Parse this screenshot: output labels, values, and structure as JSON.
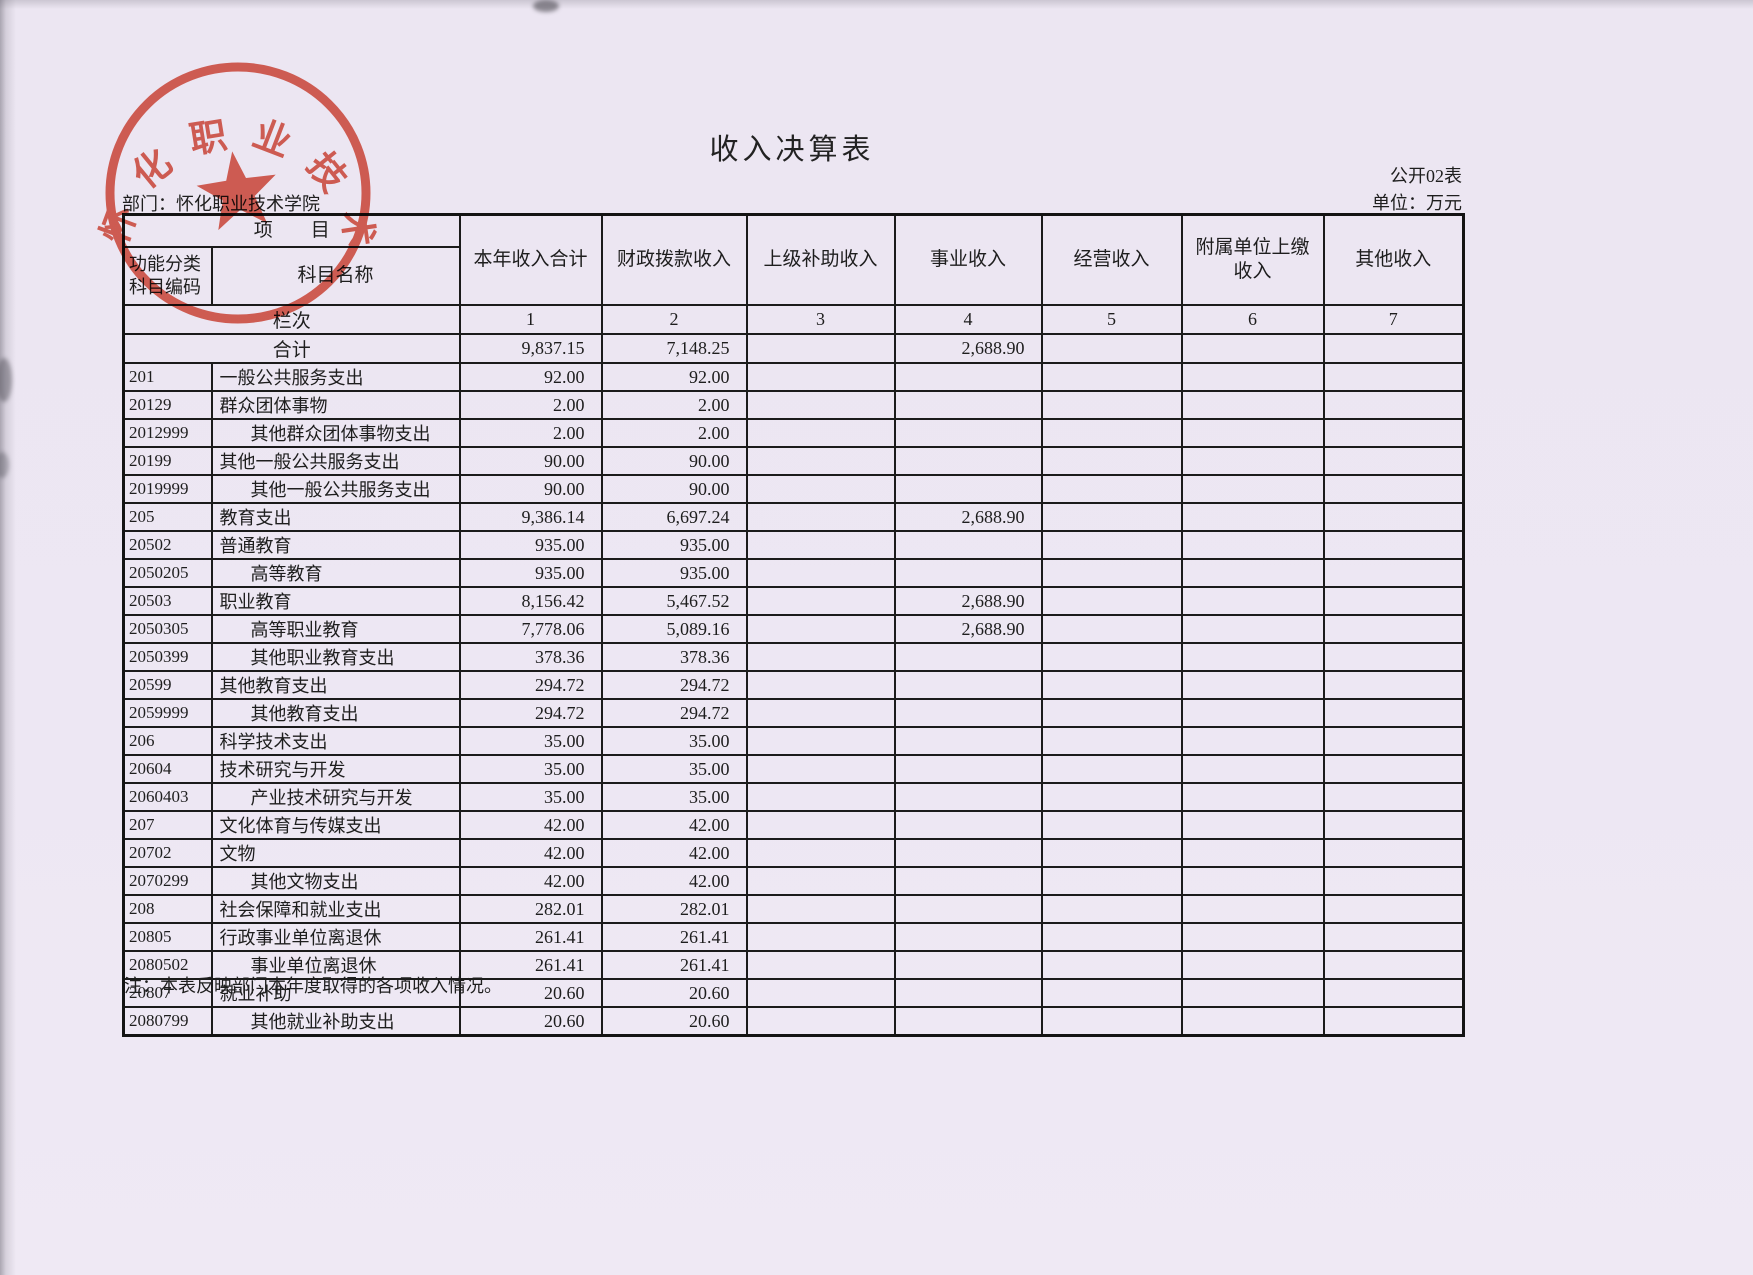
{
  "page": {
    "title": "收入决算表",
    "form_code": "公开02表",
    "unit": "单位：万元",
    "department": "部门：怀化职业技术学院",
    "note": "注：本表反映部门本年度取得的各项收入情况。",
    "colors": {
      "paper": "#ece6f2",
      "grid_line": "#1b1b1b",
      "seal_red": "#d94a38",
      "text": "#1e1e1e"
    }
  },
  "seal": {
    "text": "怀化职业技术学院",
    "icon": "red-star",
    "color": "#d94a38"
  },
  "table": {
    "project_header": "项　　目",
    "code_header": [
      "功能分类",
      "科目编码"
    ],
    "name_header": "科目名称",
    "value_headers": [
      "本年收入合计",
      "财政拨款收入",
      "上级补助收入",
      "事业收入",
      "经营收入",
      "附属单位上缴收入",
      "其他收入"
    ],
    "lane_row": {
      "label": "栏次",
      "cols": [
        "1",
        "2",
        "3",
        "4",
        "5",
        "6",
        "7"
      ]
    },
    "total_row": {
      "label": "合计",
      "values": [
        "9,837.15",
        "7,148.25",
        "",
        "2,688.90",
        "",
        "",
        ""
      ]
    },
    "rows": [
      {
        "code": "201",
        "name": "一般公共服务支出",
        "indent": false,
        "values": [
          "92.00",
          "92.00",
          "",
          "",
          "",
          "",
          ""
        ]
      },
      {
        "code": "20129",
        "name": "群众团体事物",
        "indent": false,
        "values": [
          "2.00",
          "2.00",
          "",
          "",
          "",
          "",
          ""
        ]
      },
      {
        "code": "2012999",
        "name": "其他群众团体事物支出",
        "indent": true,
        "values": [
          "2.00",
          "2.00",
          "",
          "",
          "",
          "",
          ""
        ]
      },
      {
        "code": "20199",
        "name": "其他一般公共服务支出",
        "indent": false,
        "values": [
          "90.00",
          "90.00",
          "",
          "",
          "",
          "",
          ""
        ]
      },
      {
        "code": "2019999",
        "name": "其他一般公共服务支出",
        "indent": true,
        "values": [
          "90.00",
          "90.00",
          "",
          "",
          "",
          "",
          ""
        ]
      },
      {
        "code": "205",
        "name": "教育支出",
        "indent": false,
        "values": [
          "9,386.14",
          "6,697.24",
          "",
          "2,688.90",
          "",
          "",
          ""
        ]
      },
      {
        "code": "20502",
        "name": "普通教育",
        "indent": false,
        "values": [
          "935.00",
          "935.00",
          "",
          "",
          "",
          "",
          ""
        ]
      },
      {
        "code": "2050205",
        "name": "高等教育",
        "indent": true,
        "values": [
          "935.00",
          "935.00",
          "",
          "",
          "",
          "",
          ""
        ]
      },
      {
        "code": "20503",
        "name": "职业教育",
        "indent": false,
        "values": [
          "8,156.42",
          "5,467.52",
          "",
          "2,688.90",
          "",
          "",
          ""
        ]
      },
      {
        "code": "2050305",
        "name": "高等职业教育",
        "indent": true,
        "values": [
          "7,778.06",
          "5,089.16",
          "",
          "2,688.90",
          "",
          "",
          ""
        ]
      },
      {
        "code": "2050399",
        "name": "其他职业教育支出",
        "indent": true,
        "values": [
          "378.36",
          "378.36",
          "",
          "",
          "",
          "",
          ""
        ]
      },
      {
        "code": "20599",
        "name": "其他教育支出",
        "indent": false,
        "values": [
          "294.72",
          "294.72",
          "",
          "",
          "",
          "",
          ""
        ]
      },
      {
        "code": "2059999",
        "name": "其他教育支出",
        "indent": true,
        "values": [
          "294.72",
          "294.72",
          "",
          "",
          "",
          "",
          ""
        ]
      },
      {
        "code": "206",
        "name": "科学技术支出",
        "indent": false,
        "values": [
          "35.00",
          "35.00",
          "",
          "",
          "",
          "",
          ""
        ]
      },
      {
        "code": "20604",
        "name": "技术研究与开发",
        "indent": false,
        "values": [
          "35.00",
          "35.00",
          "",
          "",
          "",
          "",
          ""
        ]
      },
      {
        "code": "2060403",
        "name": "产业技术研究与开发",
        "indent": true,
        "values": [
          "35.00",
          "35.00",
          "",
          "",
          "",
          "",
          ""
        ]
      },
      {
        "code": "207",
        "name": "文化体育与传媒支出",
        "indent": false,
        "values": [
          "42.00",
          "42.00",
          "",
          "",
          "",
          "",
          ""
        ]
      },
      {
        "code": "20702",
        "name": "文物",
        "indent": false,
        "values": [
          "42.00",
          "42.00",
          "",
          "",
          "",
          "",
          ""
        ]
      },
      {
        "code": "2070299",
        "name": "其他文物支出",
        "indent": true,
        "values": [
          "42.00",
          "42.00",
          "",
          "",
          "",
          "",
          ""
        ]
      },
      {
        "code": "208",
        "name": "社会保障和就业支出",
        "indent": false,
        "values": [
          "282.01",
          "282.01",
          "",
          "",
          "",
          "",
          ""
        ]
      },
      {
        "code": "20805",
        "name": "行政事业单位离退休",
        "indent": false,
        "values": [
          "261.41",
          "261.41",
          "",
          "",
          "",
          "",
          ""
        ]
      },
      {
        "code": "2080502",
        "name": "事业单位离退休",
        "indent": true,
        "values": [
          "261.41",
          "261.41",
          "",
          "",
          "",
          "",
          ""
        ]
      },
      {
        "code": "20807",
        "name": "就业补助",
        "indent": false,
        "values": [
          "20.60",
          "20.60",
          "",
          "",
          "",
          "",
          ""
        ]
      },
      {
        "code": "2080799",
        "name": "其他就业补助支出",
        "indent": true,
        "values": [
          "20.60",
          "20.60",
          "",
          "",
          "",
          "",
          ""
        ]
      }
    ]
  }
}
